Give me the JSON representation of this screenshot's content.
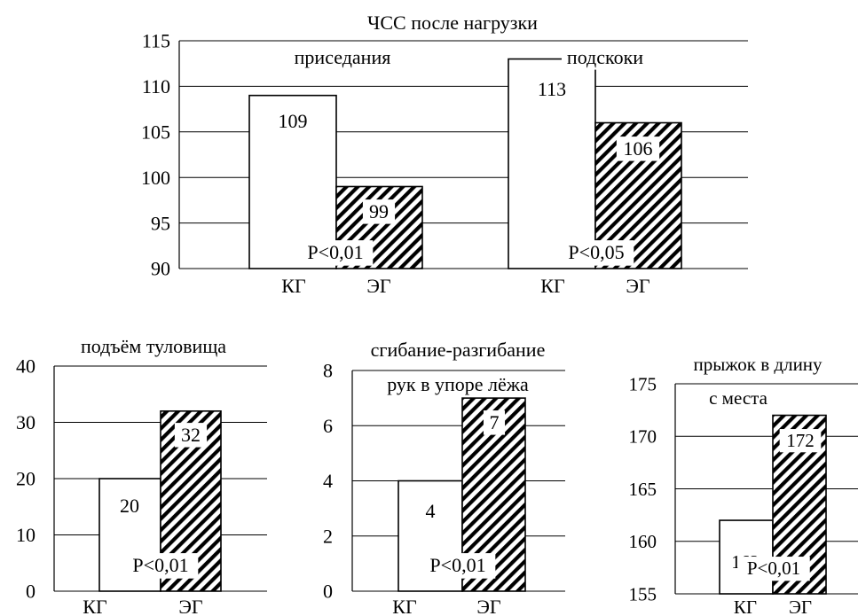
{
  "chart_data": [
    {
      "type": "bar",
      "title": "ЧСС после нагрузки",
      "ylim": [
        90,
        115
      ],
      "yticks": [
        90,
        95,
        100,
        105,
        110,
        115
      ],
      "grid": true,
      "groups": [
        {
          "label": "приседания",
          "categories": [
            "КГ",
            "ЭГ"
          ],
          "values": [
            109,
            99
          ],
          "value_labels": [
            "109",
            "99"
          ],
          "p_value": "P<0,01"
        },
        {
          "label": "подскоки",
          "categories": [
            "КГ",
            "ЭГ"
          ],
          "values": [
            113,
            106
          ],
          "value_labels": [
            "113",
            "106"
          ],
          "p_value": "P<0,05"
        }
      ],
      "series_styles": {
        "КГ": "white fill",
        "ЭГ": "diagonal hatch"
      }
    },
    {
      "type": "bar",
      "title": "подъём туловища",
      "ylim": [
        0,
        40
      ],
      "yticks": [
        0,
        10,
        20,
        30,
        40
      ],
      "grid": true,
      "categories": [
        "КГ",
        "ЭГ"
      ],
      "values": [
        20,
        32
      ],
      "value_labels": [
        "20",
        "32"
      ],
      "p_value": "P<0,01"
    },
    {
      "type": "bar",
      "title": "сгибание-разгибание",
      "subtitle": "рук в упоре лёжа",
      "ylim": [
        0,
        8
      ],
      "yticks": [
        0,
        2,
        4,
        6,
        8
      ],
      "grid": true,
      "categories": [
        "КГ",
        "ЭГ"
      ],
      "values": [
        4,
        7
      ],
      "value_labels": [
        "4",
        "7"
      ],
      "p_value": "P<0,01"
    },
    {
      "type": "bar",
      "title": "прыжок в длину",
      "subtitle": "с места",
      "ylim": [
        155,
        175
      ],
      "yticks": [
        155,
        160,
        165,
        170,
        175
      ],
      "grid": true,
      "categories": [
        "КГ",
        "ЭГ"
      ],
      "values": [
        162,
        172
      ],
      "value_labels": [
        "162",
        "172"
      ],
      "p_value": "P<0,01"
    }
  ]
}
